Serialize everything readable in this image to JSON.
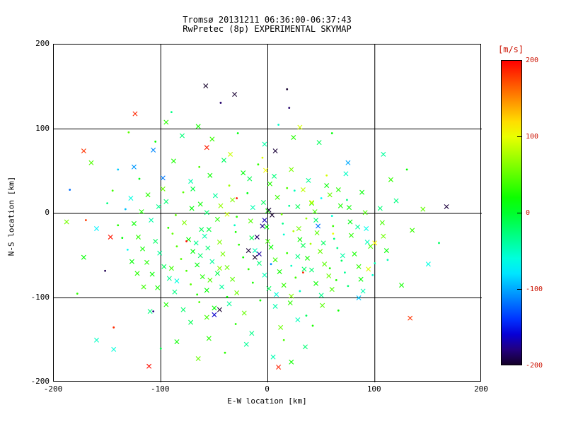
{
  "chart_data": {
    "type": "scatter",
    "title": "Tromsø 20131211 06:36:00-06:37:43",
    "subtitle": "RwPretec (8p) EXPERIMENTAL SKYMAP",
    "xlabel": "E-W location [km]",
    "ylabel": "N-S location [km]",
    "xlim": [
      -200,
      200
    ],
    "ylim": [
      -200,
      200
    ],
    "xticks": [
      -200,
      -100,
      0,
      100,
      200
    ],
    "yticks": [
      -200,
      -100,
      0,
      100,
      200
    ],
    "grid": true,
    "axis_color": "#000000",
    "background": "#ffffff",
    "marker_legend": {
      "1": "x-cross",
      "0": "dot"
    },
    "value_unit": "m/s",
    "colorbar": {
      "label": "[m/s]",
      "label_color": "#cc1100",
      "ticks": [
        200,
        100,
        0,
        -100,
        -200
      ],
      "min": -200,
      "max": 200,
      "scale": "rainbow: red=+200, yellow=+100, green=0, cyan/blue=-100, black=-200"
    },
    "points": [
      [
        -88,
        62,
        24,
        1
      ],
      [
        -64,
        55,
        41,
        0
      ],
      [
        -41,
        63,
        -18,
        1
      ],
      [
        -23,
        48,
        12,
        1
      ],
      [
        -9,
        58,
        33,
        0
      ],
      [
        6,
        44,
        -27,
        1
      ],
      [
        22,
        52,
        58,
        1
      ],
      [
        -120,
        41,
        8,
        0
      ],
      [
        -72,
        38,
        -44,
        1
      ],
      [
        -54,
        45,
        19,
        1
      ],
      [
        -36,
        33,
        72,
        0
      ],
      [
        -17,
        41,
        -12,
        1
      ],
      [
        2,
        35,
        27,
        1
      ],
      [
        18,
        30,
        44,
        0
      ],
      [
        38,
        39,
        -35,
        1
      ],
      [
        55,
        33,
        15,
        1
      ],
      [
        -98,
        29,
        52,
        1
      ],
      [
        -140,
        52,
        -88,
        0
      ],
      [
        73,
        47,
        -52,
        1
      ],
      [
        -5,
        66,
        96,
        0
      ],
      [
        -112,
        22,
        31,
        1
      ],
      [
        -95,
        14,
        -23,
        1
      ],
      [
        -79,
        25,
        47,
        0
      ],
      [
        -63,
        11,
        18,
        1
      ],
      [
        -49,
        21,
        -39,
        1
      ],
      [
        -33,
        16,
        62,
        1
      ],
      [
        -19,
        24,
        9,
        0
      ],
      [
        -4,
        13,
        -17,
        1
      ],
      [
        9,
        19,
        36,
        1
      ],
      [
        25,
        27,
        -48,
        0
      ],
      [
        41,
        12,
        21,
        1
      ],
      [
        58,
        22,
        53,
        1
      ],
      [
        74,
        16,
        -29,
        0
      ],
      [
        88,
        25,
        14,
        1
      ],
      [
        -128,
        18,
        -62,
        1
      ],
      [
        -145,
        27,
        38,
        0
      ],
      [
        33,
        28,
        84,
        1
      ],
      [
        -70,
        29,
        -8,
        1
      ],
      [
        50,
        18,
        -71,
        0
      ],
      [
        66,
        28,
        29,
        1
      ],
      [
        -118,
        2,
        26,
        1
      ],
      [
        -102,
        8,
        -33,
        1
      ],
      [
        -86,
        -2,
        49,
        0
      ],
      [
        -71,
        6,
        12,
        1
      ],
      [
        -57,
        1,
        -21,
        1
      ],
      [
        -44,
        9,
        67,
        1
      ],
      [
        -29,
        -4,
        31,
        0
      ],
      [
        -14,
        7,
        -45,
        1
      ],
      [
        0,
        3,
        22,
        1
      ],
      [
        13,
        -1,
        55,
        0
      ],
      [
        28,
        8,
        -14,
        1
      ],
      [
        44,
        2,
        38,
        1
      ],
      [
        60,
        -3,
        -58,
        0
      ],
      [
        76,
        7,
        17,
        1
      ],
      [
        91,
        1,
        43,
        1
      ],
      [
        -133,
        5,
        -92,
        0
      ],
      [
        105,
        6,
        -26,
        1
      ],
      [
        -38,
        -1,
        88,
        1
      ],
      [
        20,
        9,
        -37,
        0
      ],
      [
        68,
        9,
        24,
        1
      ],
      [
        -125,
        -12,
        19,
        1
      ],
      [
        -109,
        -8,
        -41,
        1
      ],
      [
        -93,
        -17,
        34,
        0
      ],
      [
        -78,
        -11,
        61,
        1
      ],
      [
        -62,
        -19,
        -15,
        1
      ],
      [
        -47,
        -7,
        28,
        1
      ],
      [
        -31,
        -14,
        -52,
        0
      ],
      [
        -16,
        -9,
        45,
        1
      ],
      [
        -1,
        -16,
        13,
        1
      ],
      [
        14,
        -12,
        -31,
        0
      ],
      [
        29,
        -18,
        57,
        1
      ],
      [
        45,
        -8,
        -22,
        1
      ],
      [
        61,
        -15,
        36,
        0
      ],
      [
        77,
        -10,
        9,
        1
      ],
      [
        92,
        -18,
        -64,
        1
      ],
      [
        -140,
        -14,
        27,
        0
      ],
      [
        107,
        -11,
        42,
        1
      ],
      [
        -55,
        -19,
        -9,
        1
      ],
      [
        36,
        -6,
        73,
        0
      ],
      [
        84,
        -16,
        -38,
        1
      ],
      [
        -121,
        -28,
        33,
        1
      ],
      [
        -105,
        -33,
        -19,
        1
      ],
      [
        -89,
        -24,
        51,
        0
      ],
      [
        -74,
        -31,
        16,
        1
      ],
      [
        -59,
        -27,
        -43,
        1
      ],
      [
        -45,
        -34,
        62,
        1
      ],
      [
        -30,
        -22,
        24,
        0
      ],
      [
        -15,
        -29,
        -11,
        1
      ],
      [
        0,
        -33,
        39,
        1
      ],
      [
        15,
        -25,
        -56,
        0
      ],
      [
        30,
        -31,
        18,
        1
      ],
      [
        46,
        -23,
        47,
        1
      ],
      [
        62,
        -30,
        -27,
        0
      ],
      [
        78,
        -26,
        31,
        1
      ],
      [
        93,
        -34,
        -48,
        1
      ],
      [
        -136,
        -29,
        12,
        0
      ],
      [
        108,
        -27,
        55,
        1
      ],
      [
        -67,
        -35,
        -33,
        1
      ],
      [
        24,
        -21,
        81,
        0
      ],
      [
        52,
        -35,
        -17,
        1
      ],
      [
        -117,
        -42,
        21,
        1
      ],
      [
        -101,
        -47,
        -36,
        1
      ],
      [
        -85,
        -39,
        44,
        0
      ],
      [
        -70,
        -45,
        13,
        1
      ],
      [
        -56,
        -41,
        -24,
        1
      ],
      [
        -42,
        -48,
        58,
        1
      ],
      [
        -27,
        -37,
        29,
        0
      ],
      [
        -12,
        -44,
        -49,
        1
      ],
      [
        3,
        -40,
        17,
        1
      ],
      [
        18,
        -47,
        35,
        0
      ],
      [
        33,
        -38,
        -13,
        1
      ],
      [
        49,
        -45,
        52,
        1
      ],
      [
        65,
        -41,
        -31,
        0
      ],
      [
        81,
        -48,
        23,
        1
      ],
      [
        96,
        -39,
        41,
        1
      ],
      [
        -131,
        -43,
        -68,
        0
      ],
      [
        111,
        -44,
        15,
        1
      ],
      [
        -63,
        -50,
        -21,
        1
      ],
      [
        40,
        -36,
        77,
        0
      ],
      [
        70,
        -50,
        -42,
        1
      ],
      [
        -113,
        -58,
        28,
        1
      ],
      [
        -97,
        -63,
        -16,
        1
      ],
      [
        -81,
        -54,
        46,
        0
      ],
      [
        -66,
        -61,
        11,
        1
      ],
      [
        -52,
        -57,
        -38,
        1
      ],
      [
        -38,
        -64,
        53,
        1
      ],
      [
        -23,
        -52,
        19,
        0
      ],
      [
        -8,
        -59,
        -26,
        1
      ],
      [
        7,
        -55,
        37,
        1
      ],
      [
        22,
        -62,
        -51,
        0
      ],
      [
        37,
        -53,
        22,
        1
      ],
      [
        53,
        -60,
        48,
        1
      ],
      [
        69,
        -56,
        -19,
        0
      ],
      [
        85,
        -63,
        32,
        1
      ],
      [
        -127,
        -57,
        14,
        1
      ],
      [
        100,
        -59,
        -44,
        0
      ],
      [
        -45,
        -65,
        63,
        1
      ],
      [
        28,
        -51,
        -29,
        1
      ],
      [
        58,
        -65,
        25,
        0
      ],
      [
        -90,
        -65,
        39,
        1
      ],
      [
        -108,
        -72,
        17,
        1
      ],
      [
        -92,
        -77,
        -34,
        1
      ],
      [
        -76,
        -68,
        42,
        0
      ],
      [
        -61,
        -75,
        26,
        1
      ],
      [
        -47,
        -71,
        -12,
        1
      ],
      [
        -33,
        -78,
        49,
        1
      ],
      [
        -18,
        -66,
        31,
        0
      ],
      [
        -3,
        -73,
        -47,
        1
      ],
      [
        11,
        -69,
        21,
        1
      ],
      [
        26,
        -76,
        38,
        0
      ],
      [
        41,
        -67,
        -23,
        1
      ],
      [
        57,
        -74,
        54,
        1
      ],
      [
        72,
        -70,
        -36,
        0
      ],
      [
        87,
        -78,
        16,
        1
      ],
      [
        -122,
        -71,
        29,
        1
      ],
      [
        98,
        -73,
        -55,
        0
      ],
      [
        -54,
        -79,
        44,
        1
      ],
      [
        34,
        -66,
        -18,
        1
      ],
      [
        64,
        -79,
        27,
        0
      ],
      [
        -85,
        -80,
        -61,
        1
      ],
      [
        -103,
        -88,
        23,
        1
      ],
      [
        -87,
        -93,
        -28,
        1
      ],
      [
        -72,
        -84,
        47,
        0
      ],
      [
        -57,
        -91,
        14,
        1
      ],
      [
        -43,
        -87,
        -39,
        1
      ],
      [
        -29,
        -94,
        56,
        1
      ],
      [
        -14,
        -82,
        25,
        0
      ],
      [
        1,
        -89,
        -15,
        1
      ],
      [
        15,
        -85,
        34,
        1
      ],
      [
        30,
        -92,
        -52,
        0
      ],
      [
        45,
        -83,
        19,
        1
      ],
      [
        60,
        -90,
        43,
        1
      ],
      [
        75,
        -86,
        -24,
        0
      ],
      [
        -116,
        -87,
        37,
        1
      ],
      [
        89,
        -92,
        -46,
        1
      ],
      [
        -66,
        -96,
        28,
        0
      ],
      [
        22,
        -98,
        61,
        1
      ],
      [
        50,
        -97,
        -33,
        1
      ],
      [
        -38,
        -99,
        18,
        0
      ],
      [
        8,
        -96,
        -58,
        1
      ],
      [
        -95,
        -108,
        26,
        1
      ],
      [
        -79,
        -114,
        -21,
        1
      ],
      [
        -64,
        -105,
        41,
        0
      ],
      [
        -50,
        -112,
        15,
        1
      ],
      [
        -36,
        -107,
        -36,
        1
      ],
      [
        -22,
        -118,
        52,
        1
      ],
      [
        -7,
        -103,
        23,
        0
      ],
      [
        7,
        -110,
        -44,
        1
      ],
      [
        21,
        -106,
        33,
        1
      ],
      [
        36,
        -121,
        -17,
        0
      ],
      [
        51,
        -109,
        46,
        1
      ],
      [
        -110,
        -116,
        -27,
        1
      ],
      [
        66,
        -115,
        20,
        0
      ],
      [
        -57,
        -123,
        38,
        1
      ],
      [
        28,
        -126,
        -49,
        1
      ],
      [
        -30,
        -131,
        29,
        0
      ],
      [
        12,
        -135,
        54,
        1
      ],
      [
        -72,
        -129,
        -14,
        1
      ],
      [
        42,
        -133,
        24,
        0
      ],
      [
        -15,
        -142,
        -31,
        1
      ],
      [
        -105,
        85,
        19,
        0
      ],
      [
        -80,
        92,
        -25,
        1
      ],
      [
        -52,
        88,
        35,
        1
      ],
      [
        -28,
        95,
        11,
        0
      ],
      [
        -3,
        82,
        -42,
        1
      ],
      [
        24,
        90,
        28,
        1
      ],
      [
        -130,
        96,
        47,
        0
      ],
      [
        48,
        84,
        -16,
        1
      ],
      [
        -65,
        103,
        22,
        1
      ],
      [
        10,
        105,
        -53,
        0
      ],
      [
        -95,
        108,
        31,
        1
      ],
      [
        30,
        102,
        93,
        1
      ],
      [
        -185,
        28,
        -120,
        0
      ],
      [
        -172,
        -52,
        15,
        1
      ],
      [
        -160,
        -18,
        -75,
        1
      ],
      [
        -178,
        -95,
        32,
        0
      ],
      [
        -152,
        -68,
        -190,
        0
      ],
      [
        -165,
        60,
        45,
        1
      ],
      [
        -150,
        12,
        -28,
        0
      ],
      [
        -188,
        -10,
        58,
        1
      ],
      [
        120,
        15,
        -28,
        1
      ],
      [
        135,
        -20,
        36,
        1
      ],
      [
        112,
        -55,
        -47,
        0
      ],
      [
        125,
        -85,
        22,
        1
      ],
      [
        145,
        5,
        51,
        1
      ],
      [
        160,
        -35,
        -19,
        0
      ],
      [
        115,
        40,
        33,
        1
      ],
      [
        150,
        -60,
        -62,
        1
      ],
      [
        130,
        52,
        17,
        0
      ],
      [
        108,
        70,
        -39,
        1
      ],
      [
        -55,
        -148,
        27,
        1
      ],
      [
        -20,
        -155,
        -35,
        1
      ],
      [
        15,
        -150,
        42,
        0
      ],
      [
        -85,
        -152,
        18,
        1
      ],
      [
        35,
        -158,
        -24,
        1
      ],
      [
        -40,
        -165,
        31,
        0
      ],
      [
        5,
        -170,
        -46,
        1
      ],
      [
        -65,
        -172,
        53,
        1
      ],
      [
        -100,
        -160,
        -12,
        0
      ],
      [
        22,
        -176,
        20,
        1
      ],
      [
        -58,
        151,
        -200,
        1
      ],
      [
        -31,
        141,
        -198,
        1
      ],
      [
        -124,
        118,
        186,
        1
      ],
      [
        18,
        147,
        -199,
        0
      ],
      [
        -44,
        131,
        -185,
        0
      ],
      [
        -172,
        74,
        182,
        1
      ],
      [
        -107,
        75,
        -112,
        1
      ],
      [
        -57,
        78,
        190,
        1
      ],
      [
        7,
        74,
        -196,
        1
      ],
      [
        -2,
        51,
        105,
        1
      ],
      [
        167,
        8,
        -195,
        1
      ],
      [
        -147,
        -28,
        192,
        1
      ],
      [
        -170,
        -8,
        178,
        0
      ],
      [
        -45,
        -114,
        -198,
        1
      ],
      [
        -144,
        -161,
        -58,
        1
      ],
      [
        -160,
        -150,
        -52,
        1
      ],
      [
        -144,
        -135,
        185,
        0
      ],
      [
        -107,
        -116,
        -180,
        0
      ],
      [
        -111,
        -181,
        195,
        1
      ],
      [
        10,
        -182,
        188,
        1
      ],
      [
        133,
        -124,
        182,
        1
      ],
      [
        -18,
        -44,
        -197,
        1
      ],
      [
        -12,
        -52,
        -200,
        1
      ],
      [
        -8,
        -48,
        -172,
        1
      ],
      [
        1,
        4,
        -196,
        1
      ],
      [
        4,
        -2,
        -199,
        1
      ],
      [
        -3,
        -8,
        -168,
        1
      ],
      [
        41,
        13,
        98,
        1
      ],
      [
        61,
        -24,
        102,
        0
      ],
      [
        94,
        -66,
        96,
        1
      ],
      [
        -50,
        -120,
        -162,
        1
      ],
      [
        20,
        125,
        -184,
        0
      ],
      [
        -90,
        120,
        -30,
        0
      ],
      [
        60,
        95,
        14,
        0
      ],
      [
        85,
        -100,
        -90,
        1
      ],
      [
        100,
        -35,
        110,
        1
      ],
      [
        -125,
        55,
        -105,
        1
      ],
      [
        75,
        60,
        -100,
        1
      ],
      [
        -35,
        70,
        88,
        1
      ],
      [
        55,
        45,
        92,
        0
      ],
      [
        -5,
        -15,
        -178,
        1
      ],
      [
        -10,
        -28,
        -186,
        1
      ],
      [
        -98,
        42,
        -115,
        1
      ],
      [
        3,
        -60,
        -108,
        0
      ],
      [
        47,
        -15,
        -118,
        1
      ],
      [
        -76,
        -33,
        195,
        0
      ],
      [
        33,
        -70,
        188,
        0
      ],
      [
        -29,
        18,
        192,
        0
      ]
    ]
  }
}
